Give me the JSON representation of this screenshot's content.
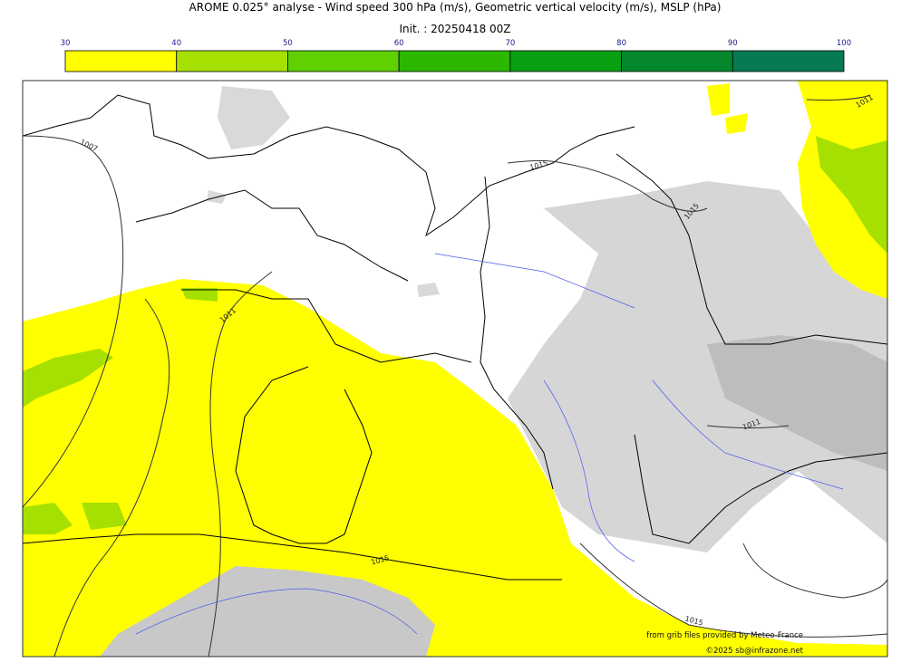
{
  "header": {
    "title": "AROME 0.025° analyse - Wind speed 300 hPa (m/s), Geometric vertical velocity (m/s), MSLP (hPa)",
    "subtitle": "Init. : 20250418 00Z"
  },
  "colorbar": {
    "ticks": [
      30,
      40,
      50,
      60,
      70,
      80,
      90,
      100
    ],
    "colors": [
      "#ffff00",
      "#a6e000",
      "#5fd000",
      "#2cb800",
      "#0aa014",
      "#05872e",
      "#067a50"
    ]
  },
  "contour_labels": [
    1007,
    1011,
    1015,
    1015,
    1011,
    1011,
    1015,
    1015
  ],
  "credits": [
    "from grib files provided by Meteo-France",
    "©2025 sb@infrazone.net"
  ]
}
